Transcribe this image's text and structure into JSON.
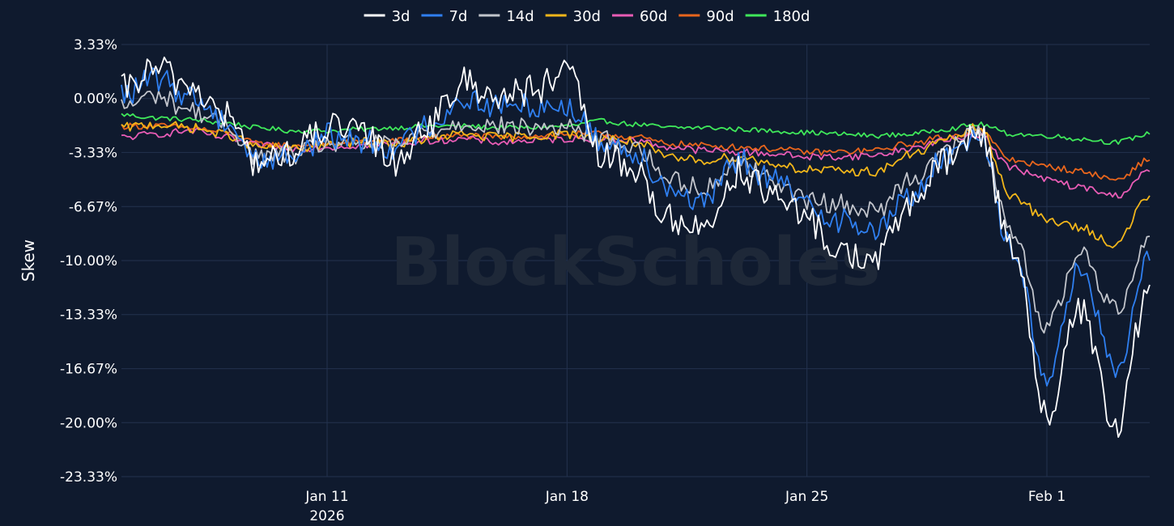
{
  "chart_data": {
    "type": "line",
    "ylabel": "Skew",
    "watermark": "BlockScholes",
    "legend_position": "top-center",
    "grid": true,
    "x_start": "2026-01-05",
    "x_end": "2026-02-04",
    "xlim": [
      "2026-01-05",
      "2026-02-04"
    ],
    "ylim": [
      -23.33,
      3.33
    ],
    "y_ticks": [
      3.33,
      0.0,
      -3.33,
      -6.67,
      -10.0,
      -13.33,
      -16.67,
      -20.0,
      -23.33
    ],
    "y_tick_labels": [
      "3.33%",
      "0.00%",
      "-3.33%",
      "-6.67%",
      "-10.00%",
      "-13.33%",
      "-16.67%",
      "-20.00%",
      "-23.33%"
    ],
    "x_ticks": [
      "2026-01-11",
      "2026-01-18",
      "2026-01-25",
      "2026-02-01"
    ],
    "x_tick_labels": [
      "Jan 11",
      "Jan 18",
      "Jan 25",
      "Feb 1"
    ],
    "x_tick_sublabels": [
      "2026",
      "",
      "",
      ""
    ],
    "series": [
      {
        "name": "3d",
        "color": "#ffffff",
        "x": [
          "2026-01-05",
          "2026-01-06",
          "2026-01-07",
          "2026-01-08",
          "2026-01-09",
          "2026-01-10",
          "2026-01-11",
          "2026-01-12",
          "2026-01-13",
          "2026-01-14",
          "2026-01-15",
          "2026-01-16",
          "2026-01-17",
          "2026-01-18",
          "2026-01-19",
          "2026-01-20",
          "2026-01-21",
          "2026-01-22",
          "2026-01-23",
          "2026-01-24",
          "2026-01-25",
          "2026-01-26",
          "2026-01-27",
          "2026-01-28",
          "2026-01-29",
          "2026-01-30",
          "2026-01-31",
          "2026-02-01",
          "2026-02-02",
          "2026-02-03",
          "2026-02-04"
        ],
        "values": [
          0.5,
          1.8,
          0.8,
          -1.0,
          -4.0,
          -3.3,
          -1.8,
          -2.2,
          -3.8,
          -1.5,
          1.0,
          0.2,
          0.5,
          1.5,
          -3.5,
          -4.5,
          -7.5,
          -8.0,
          -4.5,
          -6.0,
          -7.5,
          -9.5,
          -10.0,
          -6.5,
          -4.0,
          -2.0,
          -9.0,
          -19.5,
          -13.0,
          -20.5,
          -11.5
        ]
      },
      {
        "name": "7d",
        "color": "#2f7ff0",
        "x": [
          "2026-01-05",
          "2026-01-06",
          "2026-01-07",
          "2026-01-08",
          "2026-01-09",
          "2026-01-10",
          "2026-01-11",
          "2026-01-12",
          "2026-01-13",
          "2026-01-14",
          "2026-01-15",
          "2026-01-16",
          "2026-01-17",
          "2026-01-18",
          "2026-01-19",
          "2026-01-20",
          "2026-01-21",
          "2026-01-22",
          "2026-01-23",
          "2026-01-24",
          "2026-01-25",
          "2026-01-26",
          "2026-01-27",
          "2026-01-28",
          "2026-01-29",
          "2026-01-30",
          "2026-01-31",
          "2026-02-01",
          "2026-02-02",
          "2026-02-03",
          "2026-02-04"
        ],
        "values": [
          0.2,
          1.2,
          0.2,
          -1.3,
          -3.8,
          -3.5,
          -2.3,
          -2.6,
          -3.0,
          -1.6,
          0.0,
          -0.5,
          -0.4,
          -0.5,
          -2.6,
          -3.3,
          -5.5,
          -6.5,
          -3.8,
          -5.0,
          -6.5,
          -7.5,
          -8.2,
          -6.0,
          -3.8,
          -2.0,
          -9.5,
          -17.0,
          -10.5,
          -17.0,
          -10.0
        ]
      },
      {
        "name": "14d",
        "color": "#c2c5cc",
        "x": [
          "2026-01-05",
          "2026-01-06",
          "2026-01-07",
          "2026-01-08",
          "2026-01-09",
          "2026-01-10",
          "2026-01-11",
          "2026-01-12",
          "2026-01-13",
          "2026-01-14",
          "2026-01-15",
          "2026-01-16",
          "2026-01-17",
          "2026-01-18",
          "2026-01-19",
          "2026-01-20",
          "2026-01-21",
          "2026-01-22",
          "2026-01-23",
          "2026-01-24",
          "2026-01-25",
          "2026-01-26",
          "2026-01-27",
          "2026-01-28",
          "2026-01-29",
          "2026-01-30",
          "2026-01-31",
          "2026-02-01",
          "2026-02-02",
          "2026-02-03",
          "2026-02-04"
        ],
        "values": [
          -0.5,
          0.2,
          -0.7,
          -1.6,
          -3.6,
          -3.5,
          -2.8,
          -2.8,
          -2.9,
          -2.0,
          -1.5,
          -1.7,
          -1.8,
          -1.8,
          -2.5,
          -3.0,
          -5.0,
          -5.5,
          -4.0,
          -5.0,
          -6.3,
          -6.5,
          -7.0,
          -5.0,
          -3.2,
          -2.0,
          -8.5,
          -14.0,
          -9.5,
          -13.0,
          -8.5
        ]
      },
      {
        "name": "30d",
        "color": "#f2b61a",
        "x": [
          "2026-01-05",
          "2026-01-06",
          "2026-01-07",
          "2026-01-08",
          "2026-01-09",
          "2026-01-10",
          "2026-01-11",
          "2026-01-12",
          "2026-01-13",
          "2026-01-14",
          "2026-01-15",
          "2026-01-16",
          "2026-01-17",
          "2026-01-18",
          "2026-01-19",
          "2026-01-20",
          "2026-01-21",
          "2026-01-22",
          "2026-01-23",
          "2026-01-24",
          "2026-01-25",
          "2026-01-26",
          "2026-01-27",
          "2026-01-28",
          "2026-01-29",
          "2026-01-30",
          "2026-01-31",
          "2026-02-01",
          "2026-02-02",
          "2026-02-03",
          "2026-02-04"
        ],
        "values": [
          -1.8,
          -1.6,
          -1.8,
          -2.2,
          -3.0,
          -3.1,
          -2.9,
          -2.7,
          -2.8,
          -2.5,
          -2.2,
          -2.4,
          -2.3,
          -2.2,
          -2.4,
          -2.7,
          -3.7,
          -3.8,
          -3.6,
          -4.0,
          -4.4,
          -4.5,
          -4.5,
          -3.5,
          -2.6,
          -1.8,
          -6.0,
          -7.5,
          -8.0,
          -9.0,
          -6.0
        ]
      },
      {
        "name": "60d",
        "color": "#e85cb5",
        "x": [
          "2026-01-05",
          "2026-01-06",
          "2026-01-07",
          "2026-01-08",
          "2026-01-09",
          "2026-01-10",
          "2026-01-11",
          "2026-01-12",
          "2026-01-13",
          "2026-01-14",
          "2026-01-15",
          "2026-01-16",
          "2026-01-17",
          "2026-01-18",
          "2026-01-19",
          "2026-01-20",
          "2026-01-21",
          "2026-01-22",
          "2026-01-23",
          "2026-01-24",
          "2026-01-25",
          "2026-01-26",
          "2026-01-27",
          "2026-01-28",
          "2026-01-29",
          "2026-01-30",
          "2026-01-31",
          "2026-02-01",
          "2026-02-02",
          "2026-02-03",
          "2026-02-04"
        ],
        "values": [
          -2.4,
          -2.2,
          -2.0,
          -2.4,
          -2.9,
          -3.1,
          -3.0,
          -2.9,
          -2.8,
          -2.6,
          -2.5,
          -2.7,
          -2.6,
          -2.5,
          -2.5,
          -2.6,
          -3.0,
          -3.2,
          -3.3,
          -3.4,
          -3.6,
          -3.6,
          -3.5,
          -3.1,
          -2.6,
          -2.2,
          -4.3,
          -5.0,
          -5.5,
          -6.0,
          -4.5
        ]
      },
      {
        "name": "90d",
        "color": "#e8651c",
        "x": [
          "2026-01-05",
          "2026-01-06",
          "2026-01-07",
          "2026-01-08",
          "2026-01-09",
          "2026-01-10",
          "2026-01-11",
          "2026-01-12",
          "2026-01-13",
          "2026-01-14",
          "2026-01-15",
          "2026-01-16",
          "2026-01-17",
          "2026-01-18",
          "2026-01-19",
          "2026-01-20",
          "2026-01-21",
          "2026-01-22",
          "2026-01-23",
          "2026-01-24",
          "2026-01-25",
          "2026-01-26",
          "2026-01-27",
          "2026-01-28",
          "2026-01-29",
          "2026-01-30",
          "2026-01-31",
          "2026-02-01",
          "2026-02-02",
          "2026-02-03",
          "2026-02-04"
        ],
        "values": [
          -1.7,
          -1.7,
          -1.8,
          -2.1,
          -2.8,
          -2.9,
          -2.8,
          -2.7,
          -2.6,
          -2.4,
          -2.3,
          -2.4,
          -2.3,
          -2.2,
          -2.2,
          -2.4,
          -2.8,
          -2.9,
          -3.0,
          -3.1,
          -3.3,
          -3.3,
          -3.2,
          -2.8,
          -2.4,
          -2.0,
          -3.8,
          -4.2,
          -4.5,
          -5.0,
          -3.8
        ]
      },
      {
        "name": "180d",
        "color": "#3fe85a",
        "x": [
          "2026-01-05",
          "2026-01-06",
          "2026-01-07",
          "2026-01-08",
          "2026-01-09",
          "2026-01-10",
          "2026-01-11",
          "2026-01-12",
          "2026-01-13",
          "2026-01-14",
          "2026-01-15",
          "2026-01-16",
          "2026-01-17",
          "2026-01-18",
          "2026-01-19",
          "2026-01-20",
          "2026-01-21",
          "2026-01-22",
          "2026-01-23",
          "2026-01-24",
          "2026-01-25",
          "2026-01-26",
          "2026-01-27",
          "2026-01-28",
          "2026-01-29",
          "2026-01-30",
          "2026-01-31",
          "2026-02-01",
          "2026-02-02",
          "2026-02-03",
          "2026-02-04"
        ],
        "values": [
          -1.0,
          -1.2,
          -1.3,
          -1.5,
          -1.8,
          -2.0,
          -2.0,
          -1.9,
          -1.8,
          -1.7,
          -1.7,
          -1.8,
          -1.8,
          -1.7,
          -1.4,
          -1.6,
          -1.8,
          -1.8,
          -1.9,
          -2.0,
          -2.1,
          -2.2,
          -2.3,
          -2.2,
          -1.9,
          -1.6,
          -2.2,
          -2.3,
          -2.5,
          -2.7,
          -2.2
        ]
      }
    ]
  }
}
